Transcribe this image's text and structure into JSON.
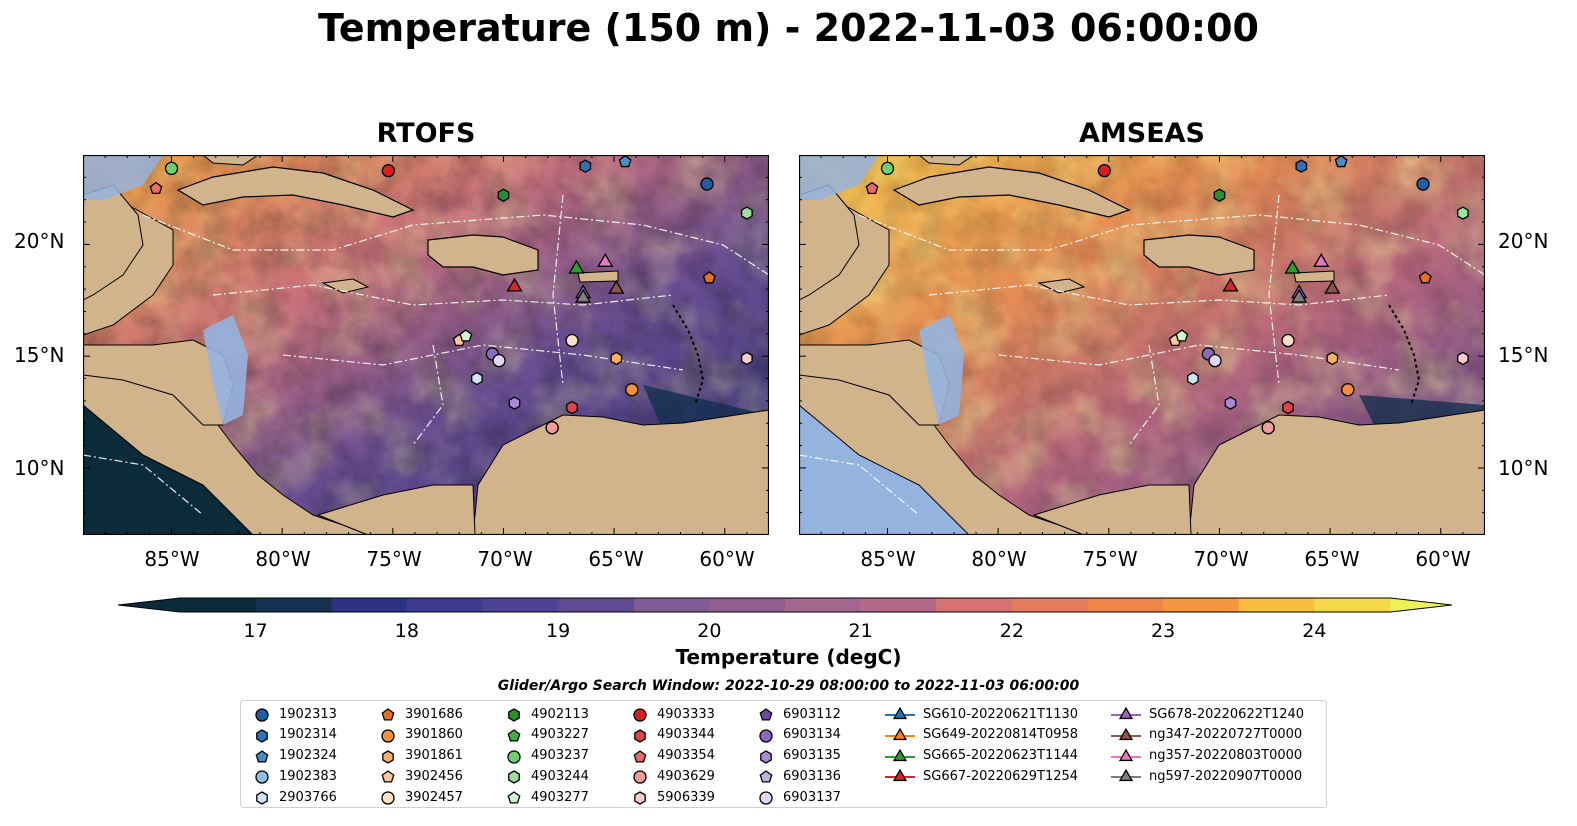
{
  "title": "Temperature (150 m) - 2022-11-03 06:00:00",
  "panels": [
    {
      "title": "RTOFS"
    },
    {
      "title": "AMSEAS"
    }
  ],
  "axes": {
    "lat_labels": [
      "20°N",
      "15°N",
      "10°N"
    ],
    "lon_labels": [
      "85°W",
      "80°W",
      "75°W",
      "70°W",
      "65°W",
      "60°W"
    ]
  },
  "colorbar": {
    "label": "Temperature (degC)",
    "ticks": [
      "17",
      "18",
      "19",
      "20",
      "21",
      "22",
      "23",
      "24"
    ],
    "min": 16.5,
    "max": 24.5,
    "colors": [
      "#0b2a3a",
      "#17304f",
      "#202f6e",
      "#2c3385",
      "#3d3a92",
      "#4e4294",
      "#5f4a94",
      "#6f5294",
      "#815b95",
      "#925f91",
      "#a4658e",
      "#b56988",
      "#c76f7f",
      "#d67372",
      "#e47b5f",
      "#ee864a",
      "#f59640",
      "#f8a93c",
      "#f8be40",
      "#f3d84a",
      "#eef25a"
    ]
  },
  "search_window": "Glider/Argo Search Window: 2022-10-29 08:00:00 to 2022-11-03 06:00:00",
  "legend": {
    "columns": [
      [
        {
          "label": "1902313",
          "marker": "circle",
          "color": "#1f5fa0"
        },
        {
          "label": "1902314",
          "marker": "hexagon",
          "color": "#2f72b3"
        },
        {
          "label": "1902324",
          "marker": "pentagon",
          "color": "#4a8cc7"
        },
        {
          "label": "1902383",
          "marker": "circle",
          "color": "#8fbde0"
        },
        {
          "label": "2903766",
          "marker": "hexagon",
          "color": "#cfe5f5"
        }
      ],
      [
        {
          "label": "3901686",
          "marker": "pentagon",
          "color": "#e8701a"
        },
        {
          "label": "3901860",
          "marker": "circle",
          "color": "#f58f3a"
        },
        {
          "label": "3901861",
          "marker": "hexagon",
          "color": "#f9ae6b"
        },
        {
          "label": "3902456",
          "marker": "pentagon",
          "color": "#fbc89a"
        },
        {
          "label": "3902457",
          "marker": "circle",
          "color": "#fde1c6"
        }
      ],
      [
        {
          "label": "4902113",
          "marker": "hexagon",
          "color": "#2a8f2a"
        },
        {
          "label": "4903227",
          "marker": "pentagon",
          "color": "#46ad46"
        },
        {
          "label": "4903237",
          "marker": "circle",
          "color": "#6fcf6f"
        },
        {
          "label": "4903244",
          "marker": "hexagon",
          "color": "#9ee09e"
        },
        {
          "label": "4903277",
          "marker": "pentagon",
          "color": "#cff2cf"
        }
      ],
      [
        {
          "label": "4903333",
          "marker": "circle",
          "color": "#d42020"
        },
        {
          "label": "4903344",
          "marker": "hexagon",
          "color": "#e04545"
        },
        {
          "label": "4903354",
          "marker": "pentagon",
          "color": "#eb6a6a"
        },
        {
          "label": "4903629",
          "marker": "circle",
          "color": "#f29b9b"
        },
        {
          "label": "5906339",
          "marker": "hexagon",
          "color": "#f8cccc"
        }
      ],
      [
        {
          "label": "6903112",
          "marker": "pentagon",
          "color": "#6a4aa5"
        },
        {
          "label": "6903134",
          "marker": "circle",
          "color": "#8a69be"
        },
        {
          "label": "6903135",
          "marker": "hexagon",
          "color": "#a88cd3"
        },
        {
          "label": "6903136",
          "marker": "pentagon",
          "color": "#c5b0e6"
        },
        {
          "label": "6903137",
          "marker": "circle",
          "color": "#e3d6f6"
        }
      ],
      [
        {
          "label": "SG610-20220621T1130",
          "marker": "triangle",
          "color": "#1f77b4"
        },
        {
          "label": "SG649-20220814T0958",
          "marker": "triangle",
          "color": "#ff7f0e"
        },
        {
          "label": "SG665-20220623T1144",
          "marker": "triangle",
          "color": "#2ca02c"
        },
        {
          "label": "SG667-20220629T1254",
          "marker": "triangle",
          "color": "#d62728"
        }
      ],
      [
        {
          "label": "SG678-20220622T1240",
          "marker": "triangle",
          "color": "#9467bd"
        },
        {
          "label": "ng347-20220727T0000",
          "marker": "triangle",
          "color": "#8c564b"
        },
        {
          "label": "ng357-20220803T0000",
          "marker": "triangle",
          "color": "#e377c2"
        },
        {
          "label": "ng597-20220907T0000",
          "marker": "triangle",
          "color": "#7f7f7f"
        }
      ]
    ]
  },
  "map_extent": {
    "lon": [
      -89,
      -58
    ],
    "lat": [
      7,
      24
    ]
  },
  "floats": [
    {
      "id": "1902313",
      "lon": -60.8,
      "lat": 22.7
    },
    {
      "id": "1902314",
      "lon": -66.3,
      "lat": 23.5
    },
    {
      "id": "1902324",
      "lon": -64.5,
      "lat": 23.7
    },
    {
      "id": "1902383",
      "lon": -67.8,
      "lat": 11.8
    },
    {
      "id": "2903766",
      "lon": -71.2,
      "lat": 14.0
    },
    {
      "id": "3901686",
      "lon": -60.7,
      "lat": 18.5
    },
    {
      "id": "3901860",
      "lon": -64.2,
      "lat": 13.5
    },
    {
      "id": "3901861",
      "lon": -64.9,
      "lat": 14.9
    },
    {
      "id": "3902456",
      "lon": -72.0,
      "lat": 15.7
    },
    {
      "id": "3902457",
      "lon": -66.9,
      "lat": 15.7
    },
    {
      "id": "4902113",
      "lon": -70.0,
      "lat": 22.2
    },
    {
      "id": "4903237",
      "lon": -85.0,
      "lat": 23.4
    },
    {
      "id": "4903244",
      "lon": -59.0,
      "lat": 21.4
    },
    {
      "id": "4903277",
      "lon": -71.7,
      "lat": 15.9
    },
    {
      "id": "4903333",
      "lon": -75.2,
      "lat": 23.3
    },
    {
      "id": "4903344",
      "lon": -66.9,
      "lat": 12.7
    },
    {
      "id": "4903354",
      "lon": -85.7,
      "lat": 22.5
    },
    {
      "id": "4903629",
      "lon": -67.8,
      "lat": 11.8
    },
    {
      "id": "5906339",
      "lon": -59.0,
      "lat": 14.9
    },
    {
      "id": "6903134",
      "lon": -70.5,
      "lat": 15.1
    },
    {
      "id": "6903135",
      "lon": -69.5,
      "lat": 12.9
    },
    {
      "id": "6903137",
      "lon": -70.2,
      "lat": 14.8
    }
  ],
  "gliders": [
    {
      "id": "SG665-20220623T1144",
      "lon": -66.7,
      "lat": 18.9
    },
    {
      "id": "SG667-20220629T1254",
      "lon": -69.5,
      "lat": 18.1
    },
    {
      "id": "ng357-20220803T0000",
      "lon": -65.4,
      "lat": 19.2
    },
    {
      "id": "ng347-20220727T0000",
      "lon": -64.9,
      "lat": 18.0
    },
    {
      "id": "SG678-20220622T1240",
      "lon": -66.4,
      "lat": 17.8
    },
    {
      "id": "ng597-20220907T0000",
      "lon": -66.4,
      "lat": 17.6
    }
  ]
}
